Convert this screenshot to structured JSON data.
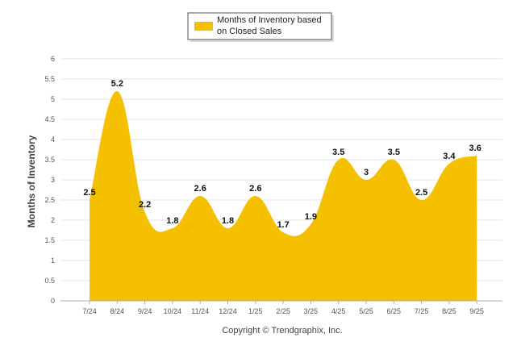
{
  "colors": {
    "area": "#f5c000",
    "grid": "#e6e6e6",
    "axis": "#aaaaaa"
  },
  "legend": {
    "line1": "Months of Inventory based",
    "line2": "on Closed Sales"
  },
  "copyright": "Copyright © Trendgraphix, Inc.",
  "chart_data": {
    "type": "area",
    "categories": [
      "7/24",
      "8/24",
      "9/24",
      "10/24",
      "11/24",
      "12/24",
      "1/25",
      "2/25",
      "3/25",
      "4/25",
      "5/25",
      "6/25",
      "7/25",
      "8/25",
      "9/25"
    ],
    "series": [
      {
        "name": "Months of Inventory based on Closed Sales",
        "values": [
          2.5,
          5.2,
          2.2,
          1.8,
          2.6,
          1.8,
          2.6,
          1.7,
          1.9,
          3.5,
          3,
          3.5,
          2.5,
          3.4,
          3.6
        ]
      }
    ],
    "data_labels": [
      "2.5",
      "5.2",
      "2.2",
      "1.8",
      "2.6",
      "1.8",
      "2.6",
      "1.7",
      "1.9",
      "3.5",
      "3",
      "3.5",
      "2.5",
      "3.4",
      "3.6"
    ],
    "ylabel": "Months of Inventory",
    "ylim": [
      0,
      6
    ],
    "yticks": [
      "0",
      "0.5",
      "1",
      "1.5",
      "2",
      "2.5",
      "3",
      "3.5",
      "4",
      "4.5",
      "5",
      "5.5",
      "6"
    ],
    "grid": true,
    "legend_position": "top-center"
  }
}
